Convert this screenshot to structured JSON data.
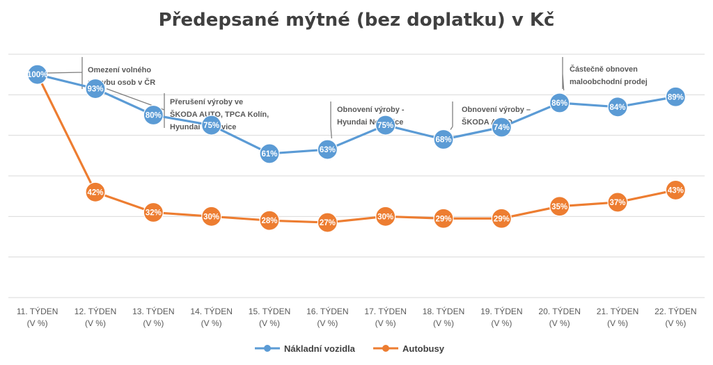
{
  "chart_data": {
    "type": "line",
    "title": "Předepsané mýtné (bez doplatku) v Kč",
    "categories": [
      [
        "11. TÝDEN",
        "(V %)"
      ],
      [
        "12. TÝDEN",
        "(V %)"
      ],
      [
        "13. TÝDEN",
        "(V %)"
      ],
      [
        "14. TÝDEN",
        "(V %)"
      ],
      [
        "15. TÝDEN",
        "(V %)"
      ],
      [
        "16. TÝDEN",
        "(V %)"
      ],
      [
        "17. TÝDEN",
        "(V %)"
      ],
      [
        "18. TÝDEN",
        "(V %)"
      ],
      [
        "19. TÝDEN",
        "(V %)"
      ],
      [
        "20. TÝDEN",
        "(V %)"
      ],
      [
        "21. TÝDEN",
        "(V %)"
      ],
      [
        "22. TÝDEN",
        "(V %)"
      ]
    ],
    "ylim": [
      -10,
      110
    ],
    "grid": true,
    "legend_position": "bottom",
    "series": [
      {
        "name": "Nákladní vozidla",
        "color": "#5b9bd5",
        "values": [
          100,
          93,
          80,
          75,
          61,
          63,
          75,
          68,
          74,
          86,
          84,
          89
        ],
        "labels": [
          "100%",
          "93%",
          "80%",
          "75%",
          "61%",
          "63%",
          "75%",
          "68%",
          "74%",
          "86%",
          "84%",
          "89%"
        ]
      },
      {
        "name": "Autobusy",
        "color": "#ed7d31",
        "values": [
          100,
          42,
          32,
          30,
          28,
          27,
          30,
          29,
          29,
          35,
          37,
          43
        ],
        "labels": [
          "",
          "42%",
          "32%",
          "30%",
          "28%",
          "27%",
          "30%",
          "29%",
          "29%",
          "35%",
          "37%",
          "43%"
        ]
      }
    ],
    "annotations": [
      {
        "at": 0,
        "series": 0,
        "lines": [
          "Omezení volného",
          "pohybu osob v ČR"
        ]
      },
      {
        "at": 1,
        "series": 0,
        "lines": [
          "Přerušení výroby ve",
          "ŠKODA AUTO, TPCA Kolín,",
          "Hyundai Nošovice"
        ]
      },
      {
        "at": 5,
        "series": 0,
        "lines": [
          "Obnovení výroby -",
          "Hyundai Nošovice"
        ]
      },
      {
        "at": 7,
        "series": 0,
        "lines": [
          "Obnovení výroby –",
          "ŠKODA AUTO"
        ]
      },
      {
        "at": 9,
        "series": 0,
        "lines": [
          "Částečně obnoven",
          "maloobchodní prodej"
        ]
      }
    ]
  }
}
